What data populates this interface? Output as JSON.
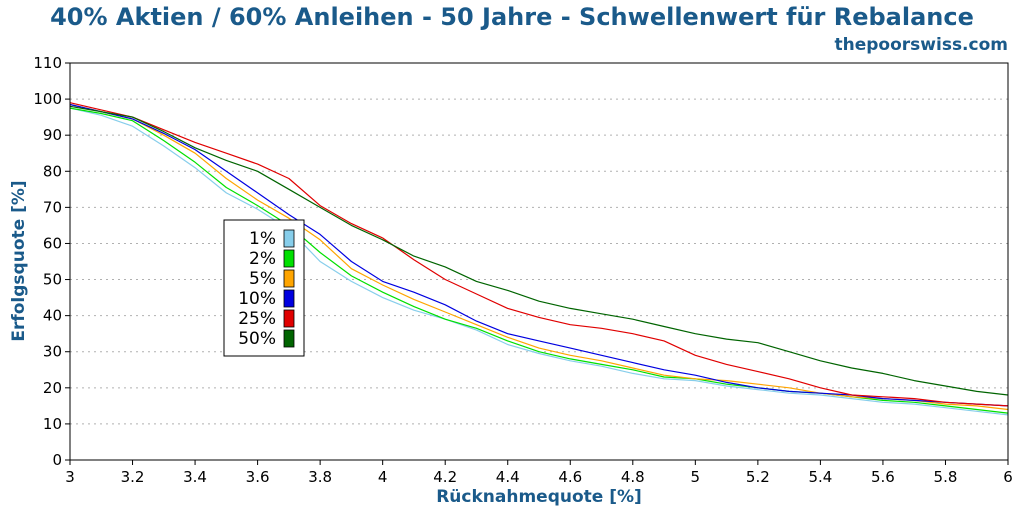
{
  "chart_data": {
    "type": "line",
    "title": "40% Aktien / 60% Anleihen - 50 Jahre - Schwellenwert für Rebalance",
    "subtitle": "thepoorswiss.com",
    "xlabel": "Rücknahmequote [%]",
    "ylabel": "Erfolgsquote [%]",
    "xlim": [
      3,
      6
    ],
    "ylim": [
      0,
      110
    ],
    "xticks": [
      "3",
      "3.2",
      "3.4",
      "3.6",
      "3.8",
      "4",
      "4.2",
      "4.4",
      "4.6",
      "4.8",
      "5",
      "5.2",
      "5.4",
      "5.6",
      "5.8",
      "6"
    ],
    "yticks": [
      "0",
      "10",
      "20",
      "30",
      "40",
      "50",
      "60",
      "70",
      "80",
      "90",
      "100",
      "110"
    ],
    "grid": "horizontal dotted",
    "legend_position": "left-middle",
    "x": [
      3.0,
      3.1,
      3.2,
      3.3,
      3.4,
      3.5,
      3.6,
      3.7,
      3.8,
      3.9,
      4.0,
      4.1,
      4.2,
      4.3,
      4.4,
      4.5,
      4.6,
      4.7,
      4.8,
      4.9,
      5.0,
      5.1,
      5.2,
      5.3,
      5.4,
      5.5,
      5.6,
      5.7,
      5.8,
      5.9,
      6.0
    ],
    "series": [
      {
        "name": "1%",
        "color": "#87ceeb",
        "values": [
          97.5,
          95.5,
          92.5,
          87,
          81,
          74,
          69.5,
          64,
          55,
          49.5,
          45,
          41.5,
          39,
          36,
          32,
          29.5,
          27.5,
          26,
          24,
          22.5,
          22,
          20.5,
          19.5,
          18.5,
          18,
          17,
          16,
          15.5,
          14.5,
          13.5,
          12.5
        ]
      },
      {
        "name": "2%",
        "color": "#00e000",
        "values": [
          97.5,
          96,
          94,
          88.5,
          82.5,
          75.5,
          70.5,
          65,
          57.5,
          51,
          46.5,
          42.5,
          39,
          36.5,
          33,
          30,
          28,
          26.5,
          25,
          23,
          22.5,
          21,
          20,
          19,
          18.5,
          17.5,
          16.5,
          16,
          15,
          14,
          13
        ]
      },
      {
        "name": "5%",
        "color": "#ffa500",
        "values": [
          98.5,
          96.5,
          94.5,
          90,
          85,
          78,
          72,
          67,
          61,
          53,
          48.5,
          44.5,
          41,
          37.5,
          34,
          31,
          29,
          27.5,
          25.5,
          23.5,
          22.5,
          22,
          21,
          20,
          18.5,
          17.5,
          17,
          16.5,
          15.5,
          15,
          14
        ]
      },
      {
        "name": "10%",
        "color": "#0000e0",
        "values": [
          98.5,
          96.5,
          94.5,
          90.5,
          86,
          80,
          74,
          68,
          62.5,
          55,
          49.5,
          46.5,
          43,
          38.5,
          35,
          33,
          31,
          29,
          27,
          25,
          23.5,
          21.5,
          20,
          19,
          18.5,
          18,
          17,
          16.5,
          16,
          15.5,
          15
        ]
      },
      {
        "name": "25%",
        "color": "#e00000",
        "values": [
          99,
          97,
          95,
          91.5,
          88,
          85,
          82,
          78,
          70.5,
          65.5,
          61.5,
          55.5,
          50,
          46,
          42,
          39.5,
          37.5,
          36.5,
          35,
          33,
          29,
          26.5,
          24.5,
          22.5,
          20,
          18,
          17.5,
          17,
          16,
          15.5,
          15
        ]
      },
      {
        "name": "50%",
        "color": "#006400",
        "values": [
          98,
          96.5,
          95,
          91,
          86.5,
          83,
          80,
          75,
          70,
          65,
          61,
          56.5,
          53.5,
          49.5,
          47,
          44,
          42,
          40.5,
          39,
          37,
          35,
          33.5,
          32.5,
          30,
          27.5,
          25.5,
          24,
          22,
          20.5,
          19,
          18
        ]
      }
    ]
  }
}
